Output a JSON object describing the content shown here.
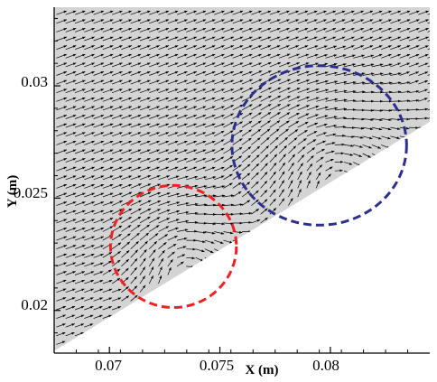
{
  "chart_data": {
    "type": "vector-field",
    "title": "",
    "xlabel": "X (m)",
    "ylabel": "Y (m)",
    "xlim": [
      0.0675,
      0.0845
    ],
    "ylim": [
      0.0181,
      0.0335
    ],
    "x_ticks": [
      0.07,
      0.075,
      0.08
    ],
    "x_tick_labels": [
      "0.07",
      "0.075",
      "0.08"
    ],
    "y_ticks": [
      0.02,
      0.025,
      0.03
    ],
    "y_tick_labels": [
      "0.02",
      "0.025",
      "0.03"
    ],
    "grid": false,
    "legend": "none",
    "wall_boundary": {
      "x": [
        0.0675,
        0.0845
      ],
      "y": [
        0.0182,
        0.0284
      ],
      "note_side": "flow domain above line, white below"
    },
    "domain_fill_color": "#d4d4d4",
    "vector_color": "#000000",
    "annotations": [
      {
        "shape": "dashed-ellipse",
        "color": "#ee2222",
        "center": [
          0.0729,
          0.02285
        ],
        "radius_x": 0.00285,
        "radius_y": 0.00272
      },
      {
        "shape": "dashed-ellipse",
        "color": "#2e2e8e",
        "center": [
          0.0795,
          0.02735
        ],
        "radius_x": 0.00395,
        "radius_y": 0.00355
      }
    ]
  }
}
